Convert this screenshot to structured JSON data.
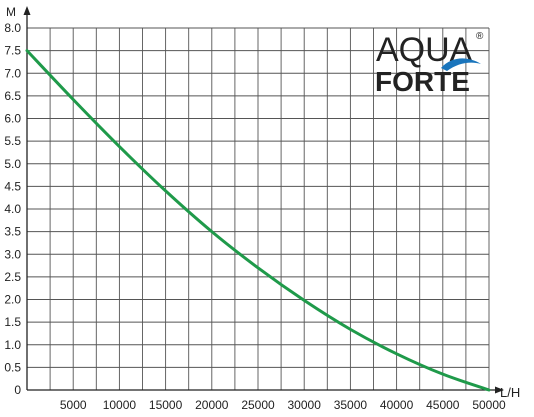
{
  "logo": {
    "line1": "AQUA",
    "line2": "FORTE",
    "registered_mark": "®",
    "colors": {
      "blue": "#1a75bc",
      "navy": "#163c78"
    }
  },
  "chart_data": {
    "type": "line",
    "title": "",
    "xlabel": "L/H",
    "ylabel": "M",
    "xlim": [
      0,
      50000
    ],
    "ylim": [
      0,
      8
    ],
    "x_ticks": [
      5000,
      10000,
      15000,
      20000,
      25000,
      30000,
      35000,
      40000,
      45000,
      50000
    ],
    "y_ticks": [
      0,
      0.5,
      1.0,
      1.5,
      2.0,
      2.5,
      3.0,
      3.5,
      4.0,
      4.5,
      5.0,
      5.5,
      6.0,
      6.5,
      7.0,
      7.5,
      8.0
    ],
    "x_tick_labels": [
      "5000",
      "10000",
      "15000",
      "20000",
      "25000",
      "30000",
      "35000",
      "40000",
      "45000",
      "50000"
    ],
    "y_tick_labels": [
      "0",
      "0.5",
      "1.0",
      "1.5",
      "2.0",
      "2.5",
      "3.0",
      "3.5",
      "4.0",
      "4.5",
      "5.0",
      "5.5",
      "6.0",
      "6.5",
      "7.0",
      "7.5",
      "8.0"
    ],
    "grid": true,
    "series": [
      {
        "color": "#1f9a4a",
        "x": [
          0,
          5000,
          10000,
          15000,
          20000,
          25000,
          30000,
          35000,
          40000,
          45000,
          50000
        ],
        "y": [
          7.5,
          6.42,
          5.38,
          4.4,
          3.5,
          2.7,
          1.98,
          1.34,
          0.8,
          0.35,
          0
        ]
      }
    ]
  }
}
